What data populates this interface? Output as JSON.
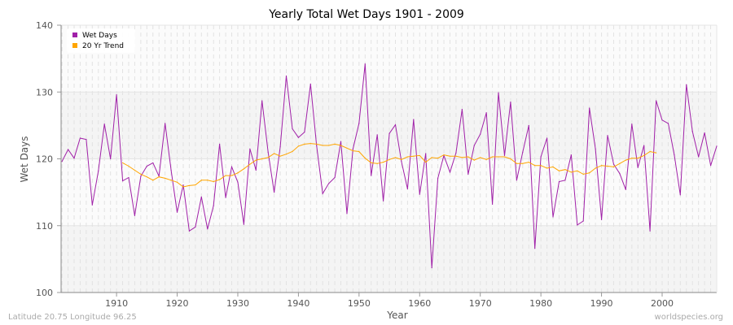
{
  "chart_data": {
    "type": "line",
    "title": "Yearly Total Wet Days 1901 - 2009",
    "xlabel": "Year",
    "ylabel": "Wet Days",
    "xlim": [
      1901,
      2009
    ],
    "ylim": [
      100,
      140
    ],
    "xticks": [
      1910,
      1920,
      1930,
      1940,
      1950,
      1960,
      1970,
      1980,
      1990,
      2000
    ],
    "yticks": [
      100,
      110,
      120,
      130,
      140
    ],
    "grid": true,
    "legend_position": "top-left",
    "series": [
      {
        "name": "Wet Days",
        "color": "#a020a8",
        "x_start": 1901,
        "values": [
          119.6,
          121.4,
          120.1,
          123.1,
          122.9,
          113.1,
          118.2,
          125.2,
          120.0,
          129.6,
          116.7,
          117.2,
          111.5,
          117.4,
          118.9,
          119.4,
          117.4,
          125.3,
          118.3,
          112.0,
          116.1,
          109.2,
          109.8,
          114.3,
          109.5,
          113.0,
          122.2,
          114.2,
          118.8,
          116.5,
          110.2,
          121.5,
          118.3,
          128.7,
          121.0,
          115.0,
          121.8,
          132.4,
          124.5,
          123.2,
          124.0,
          131.2,
          122.0,
          114.8,
          116.3,
          117.2,
          122.6,
          111.8,
          121.5,
          125.3,
          134.2,
          117.5,
          123.6,
          113.7,
          123.8,
          125.1,
          119.6,
          115.5,
          125.9,
          114.7,
          120.8,
          103.7,
          117.1,
          120.5,
          118.0,
          120.9,
          127.4,
          117.7,
          122.0,
          123.7,
          126.9,
          113.2,
          129.9,
          120.5,
          128.5,
          116.8,
          121.0,
          125.0,
          106.6,
          120.3,
          123.1,
          111.3,
          116.6,
          116.8,
          120.6,
          110.1,
          110.7,
          127.6,
          121.5,
          110.9,
          123.5,
          119.2,
          117.8,
          115.4,
          125.2,
          118.7,
          122.0,
          109.2,
          128.7,
          125.8,
          125.3,
          120.6,
          114.6,
          131.1,
          124.1,
          120.3,
          123.9,
          119.0,
          121.9
        ]
      },
      {
        "name": "20 Yr Trend",
        "color": "#ffa500",
        "x_start": 1911,
        "values": [
          119.4,
          118.9,
          118.3,
          117.7,
          117.3,
          116.8,
          117.3,
          117.1,
          116.8,
          116.5,
          115.8,
          116.0,
          116.1,
          116.8,
          116.8,
          116.6,
          116.9,
          117.5,
          117.5,
          117.9,
          118.5,
          119.2,
          119.8,
          120.0,
          120.2,
          120.8,
          120.4,
          120.7,
          121.1,
          121.9,
          122.2,
          122.3,
          122.2,
          122.0,
          122.0,
          122.2,
          122.0,
          121.6,
          121.2,
          121.1,
          120.1,
          119.4,
          119.3,
          119.5,
          119.9,
          120.2,
          119.9,
          120.3,
          120.4,
          120.5,
          119.5,
          120.2,
          120.1,
          120.6,
          120.4,
          120.4,
          120.2,
          120.3,
          119.8,
          120.2,
          119.9,
          120.3,
          120.3,
          120.3,
          120.0,
          119.3,
          119.3,
          119.5,
          119.0,
          119.0,
          118.6,
          118.8,
          118.2,
          118.4,
          118.0,
          118.2,
          117.7,
          117.9,
          118.6,
          119.0,
          118.9,
          118.8,
          119.3,
          119.8,
          120.1,
          120.1,
          120.5,
          121.1,
          120.9
        ]
      }
    ]
  },
  "footer": {
    "location": "Latitude 20.75 Longitude 96.25",
    "source": "worldspecies.org"
  }
}
